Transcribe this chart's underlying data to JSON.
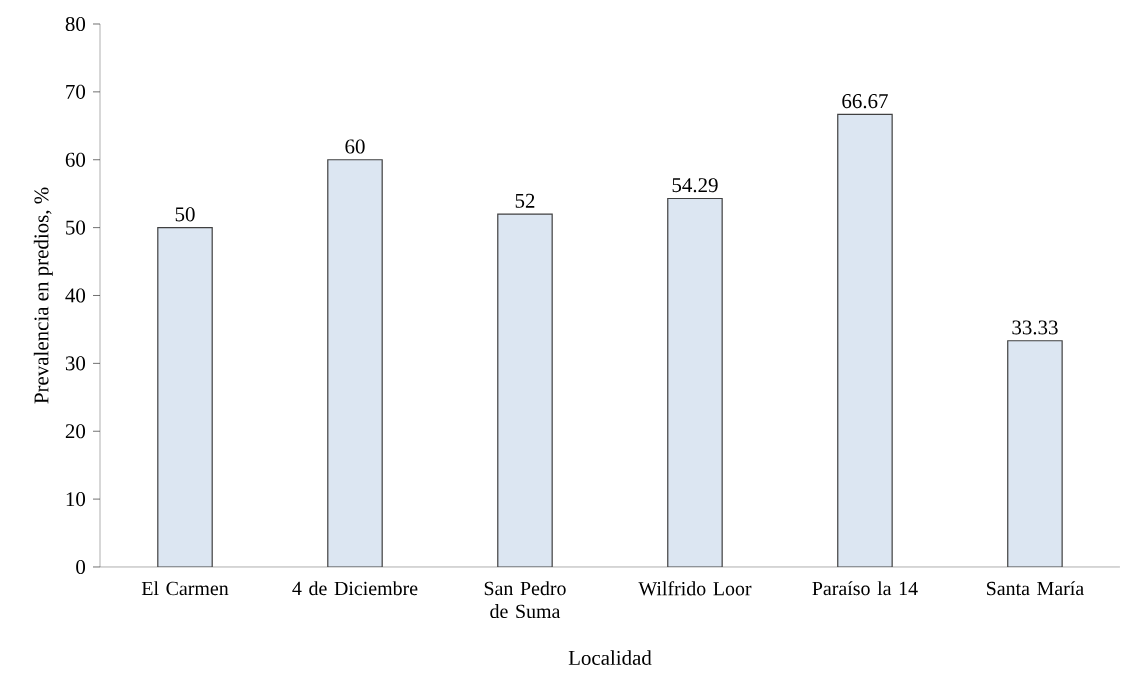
{
  "chart_data": {
    "type": "bar",
    "xlabel": "Localidad",
    "ylabel": "Prevalencia en predios, %",
    "categories": [
      "El Carmen",
      "4 de Diciembre",
      "San Pedro de Suma",
      "Wilfrido Loor",
      "Paraíso la 14",
      "Santa María"
    ],
    "values": [
      50,
      60,
      52,
      54.29,
      66.67,
      33.33
    ],
    "color": "#dce6f2",
    "ylim": [
      0,
      80
    ],
    "yticks": [
      0,
      10,
      20,
      30,
      40,
      50,
      60,
      70,
      80
    ],
    "data_labels": true
  }
}
